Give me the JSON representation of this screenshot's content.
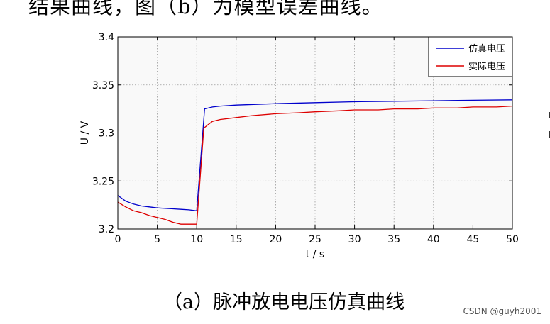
{
  "header_text": "结果曲线，图（b）为模型误差曲线。",
  "caption": "（a）脉冲放电电压仿真曲线",
  "watermark": "CSDN @guyh2001",
  "colors": {
    "simulated": "#0000cc",
    "actual": "#dd0000",
    "plot_bg": "#f9f9f9"
  },
  "chart_data": {
    "type": "line",
    "title": "",
    "xlabel": "t / s",
    "ylabel": "U / V",
    "xlim": [
      0,
      50
    ],
    "ylim": [
      3.2,
      3.4
    ],
    "xticks": [
      0,
      5,
      10,
      15,
      20,
      25,
      30,
      35,
      40,
      45,
      50
    ],
    "yticks": [
      3.2,
      3.25,
      3.3,
      3.35,
      3.4
    ],
    "ytick_labels": [
      "3.2",
      "3.25",
      "3.3",
      "3.35",
      "3.4"
    ],
    "grid": true,
    "legend_position": "top-right",
    "series": [
      {
        "name": "仿真电压",
        "color": "#0000cc",
        "x": [
          0,
          1,
          2,
          3,
          4,
          5,
          6,
          7,
          8,
          9,
          10,
          11,
          12,
          13,
          15,
          20,
          25,
          30,
          35,
          40,
          45,
          50
        ],
        "y": [
          3.235,
          3.229,
          3.226,
          3.224,
          3.223,
          3.222,
          3.2215,
          3.221,
          3.2205,
          3.22,
          3.219,
          3.325,
          3.327,
          3.328,
          3.329,
          3.3305,
          3.3315,
          3.3325,
          3.333,
          3.3335,
          3.334,
          3.3345
        ]
      },
      {
        "name": "实际电压",
        "color": "#dd0000",
        "x": [
          0,
          1,
          2,
          3,
          4,
          5,
          6,
          7,
          8,
          9,
          10,
          10.9,
          11.5,
          12,
          13,
          15,
          17,
          20,
          23,
          25,
          28,
          30,
          33,
          35,
          38,
          40,
          43,
          45,
          48,
          50
        ],
        "y": [
          3.228,
          3.223,
          3.219,
          3.217,
          3.214,
          3.212,
          3.21,
          3.207,
          3.205,
          3.205,
          3.205,
          3.305,
          3.309,
          3.312,
          3.314,
          3.316,
          3.318,
          3.32,
          3.321,
          3.322,
          3.323,
          3.324,
          3.324,
          3.325,
          3.325,
          3.326,
          3.326,
          3.327,
          3.327,
          3.328
        ]
      }
    ]
  }
}
